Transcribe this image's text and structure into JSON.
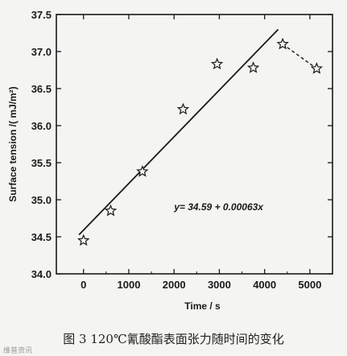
{
  "chart_data": {
    "type": "scatter",
    "xlabel": "Time / s",
    "ylabel": "Surface tension /( mJ/m²)",
    "xlim": [
      -600,
      5500
    ],
    "ylim": [
      34.0,
      37.5
    ],
    "x_ticks": [
      0,
      1000,
      2000,
      3000,
      4000,
      5000
    ],
    "y_ticks": [
      34.0,
      34.5,
      35.0,
      35.5,
      36.0,
      36.5,
      37.0,
      37.5
    ],
    "marker": "star",
    "series": [
      {
        "points": [
          {
            "x": 0,
            "y": 34.45
          },
          {
            "x": 600,
            "y": 34.85
          },
          {
            "x": 1300,
            "y": 35.38
          },
          {
            "x": 2200,
            "y": 36.22
          },
          {
            "x": 2950,
            "y": 36.83
          },
          {
            "x": 3750,
            "y": 36.78
          },
          {
            "x": 4400,
            "y": 37.1
          },
          {
            "x": 5150,
            "y": 36.77
          }
        ]
      }
    ],
    "fit_line": {
      "equation": "y= 34.59 + 0.00063x",
      "x_start": -100,
      "x_end": 4300,
      "intercept": 34.59,
      "slope": 0.00063
    },
    "dashed_segment": {
      "from": {
        "x": 4400,
        "y": 37.1
      },
      "to": {
        "x": 5150,
        "y": 36.77
      }
    }
  },
  "caption": "图 3  120℃氰酸酯表面张力随时间的变化",
  "watermark": "维普资讯"
}
